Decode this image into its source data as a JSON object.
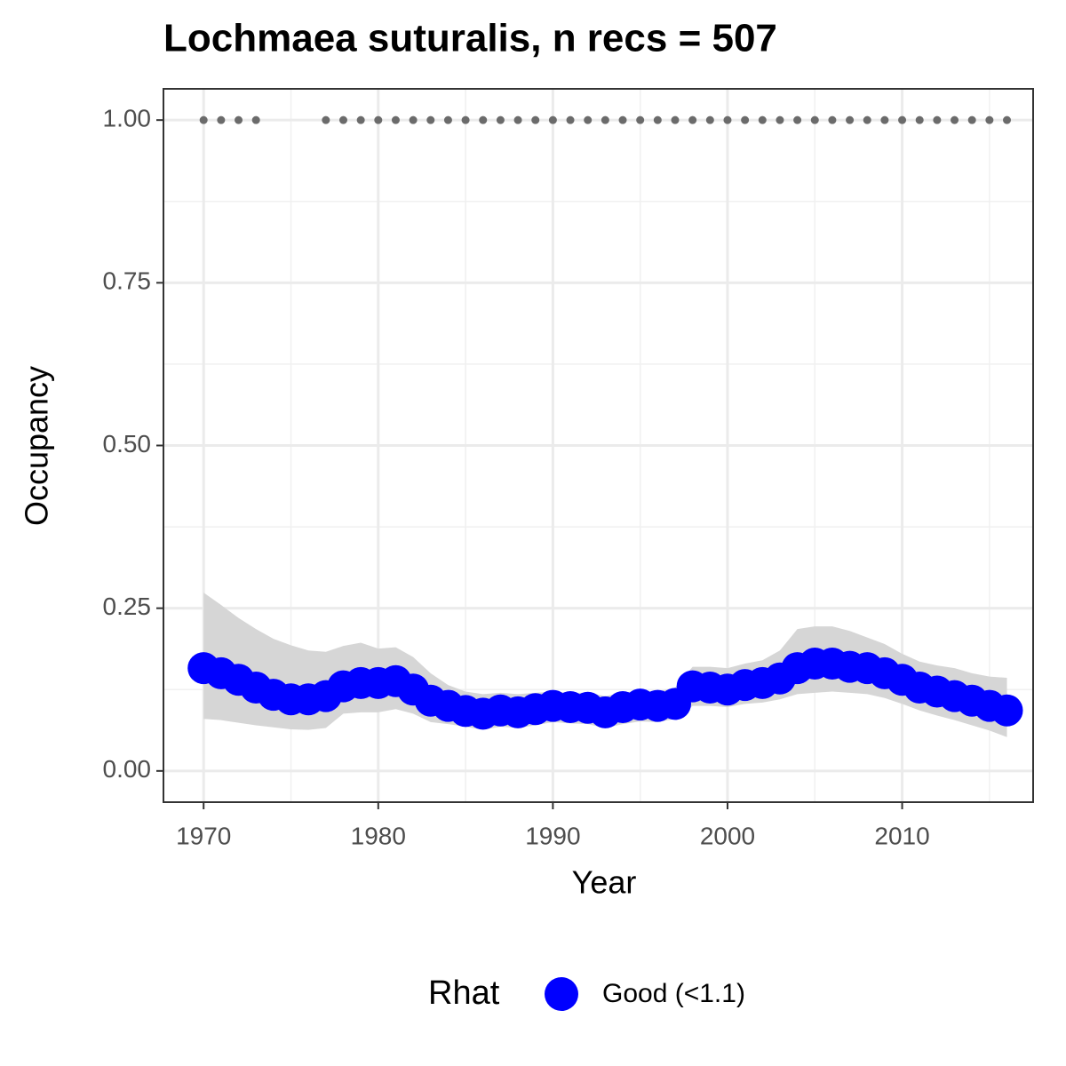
{
  "chart_data": {
    "type": "line",
    "title": "Lochmaea suturalis, n recs = 507",
    "x_label": "Year",
    "y_label": "Occupancy",
    "legend_title": "Rhat",
    "x": [
      1970,
      1971,
      1972,
      1973,
      1974,
      1975,
      1976,
      1977,
      1978,
      1979,
      1980,
      1981,
      1982,
      1983,
      1984,
      1985,
      1986,
      1987,
      1988,
      1989,
      1990,
      1991,
      1992,
      1993,
      1994,
      1995,
      1996,
      1997,
      1998,
      1999,
      2000,
      2001,
      2002,
      2003,
      2004,
      2005,
      2006,
      2007,
      2008,
      2009,
      2010,
      2011,
      2012,
      2013,
      2014,
      2015,
      2016
    ],
    "series": [
      {
        "name": "Good (<1.1)",
        "color": "#0000ff",
        "band_color": "#d6d6d6",
        "values": [
          0.158,
          0.15,
          0.14,
          0.128,
          0.117,
          0.11,
          0.11,
          0.115,
          0.13,
          0.135,
          0.135,
          0.138,
          0.125,
          0.108,
          0.1,
          0.092,
          0.088,
          0.093,
          0.09,
          0.095,
          0.1,
          0.098,
          0.097,
          0.09,
          0.098,
          0.102,
          0.1,
          0.103,
          0.13,
          0.128,
          0.125,
          0.132,
          0.135,
          0.142,
          0.158,
          0.165,
          0.165,
          0.16,
          0.158,
          0.15,
          0.14,
          0.128,
          0.122,
          0.115,
          0.108,
          0.1,
          0.093
        ],
        "upper": [
          0.274,
          0.255,
          0.235,
          0.218,
          0.203,
          0.193,
          0.185,
          0.183,
          0.192,
          0.197,
          0.188,
          0.19,
          0.175,
          0.15,
          0.132,
          0.122,
          0.118,
          0.12,
          0.118,
          0.12,
          0.122,
          0.12,
          0.12,
          0.115,
          0.12,
          0.124,
          0.122,
          0.128,
          0.16,
          0.16,
          0.158,
          0.165,
          0.17,
          0.185,
          0.218,
          0.222,
          0.222,
          0.215,
          0.205,
          0.195,
          0.18,
          0.168,
          0.162,
          0.158,
          0.15,
          0.145,
          0.143
        ],
        "lower": [
          0.08,
          0.078,
          0.074,
          0.07,
          0.067,
          0.064,
          0.063,
          0.066,
          0.088,
          0.09,
          0.09,
          0.095,
          0.088,
          0.075,
          0.072,
          0.068,
          0.063,
          0.068,
          0.066,
          0.07,
          0.075,
          0.073,
          0.072,
          0.066,
          0.072,
          0.076,
          0.075,
          0.08,
          0.1,
          0.1,
          0.098,
          0.103,
          0.105,
          0.11,
          0.118,
          0.12,
          0.122,
          0.12,
          0.118,
          0.112,
          0.103,
          0.093,
          0.085,
          0.078,
          0.07,
          0.062,
          0.052
        ]
      }
    ],
    "records": {
      "color": "#6b6b6b",
      "x": [
        1970,
        1971,
        1972,
        1973,
        1977,
        1978,
        1979,
        1980,
        1981,
        1982,
        1983,
        1984,
        1985,
        1986,
        1987,
        1988,
        1989,
        1990,
        1991,
        1992,
        1993,
        1994,
        1995,
        1996,
        1997,
        1998,
        1999,
        2000,
        2001,
        2002,
        2003,
        2004,
        2005,
        2006,
        2007,
        2008,
        2009,
        2010,
        2011,
        2012,
        2013,
        2014,
        2015,
        2016
      ],
      "values": [
        1,
        1,
        1,
        1,
        1,
        1,
        1,
        1,
        1,
        1,
        1,
        1,
        1,
        1,
        1,
        1,
        1,
        1,
        1,
        1,
        1,
        1,
        1,
        1,
        1,
        1,
        1,
        1,
        1,
        1,
        1,
        1,
        1,
        1,
        1,
        1,
        1,
        1,
        1,
        1,
        1,
        1,
        1,
        1
      ]
    },
    "xlim": [
      1967.7,
      2017.5
    ],
    "ylim": [
      -0.048,
      1.048
    ],
    "xticks": [
      1970,
      1980,
      1990,
      2000,
      2010
    ],
    "minor_xticks": [
      1975,
      1985,
      1995,
      2005,
      2015
    ],
    "yticks": [
      {
        "value": 0,
        "label": "0.00"
      },
      {
        "value": 0.25,
        "label": "0.25"
      },
      {
        "value": 0.5,
        "label": "0.50"
      },
      {
        "value": 0.75,
        "label": "0.75"
      },
      {
        "value": 1,
        "label": "1.00"
      }
    ],
    "minor_yticks": [
      0.125,
      0.375,
      0.625,
      0.875
    ],
    "grid": true,
    "legend": "bottom"
  }
}
